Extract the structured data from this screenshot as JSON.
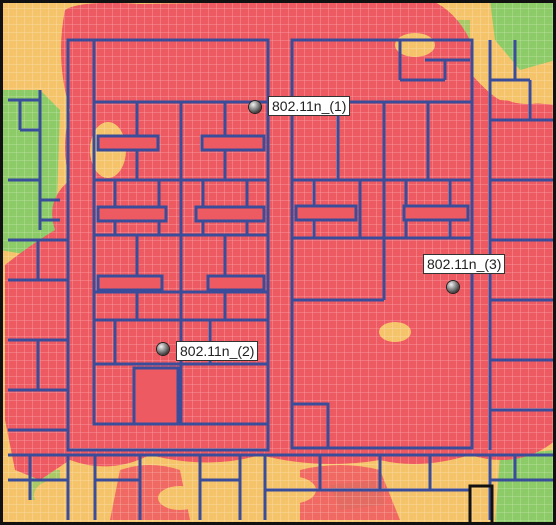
{
  "colors": {
    "signal_strong": "#ee5a62",
    "signal_medium": "#f5c46a",
    "signal_weak": "#8ccb67",
    "walls": "#3a4d9a",
    "grid": "#ffffff",
    "frame": "#111111",
    "label_bg": "#ffffff"
  },
  "access_points": [
    {
      "id": "ap1",
      "label": "802.11n_(1)",
      "icon": "access-point-icon"
    },
    {
      "id": "ap2",
      "label": "802.11n_(2)",
      "icon": "access-point-icon"
    },
    {
      "id": "ap3",
      "label": "802.11n_(3)",
      "icon": "access-point-icon"
    }
  ]
}
